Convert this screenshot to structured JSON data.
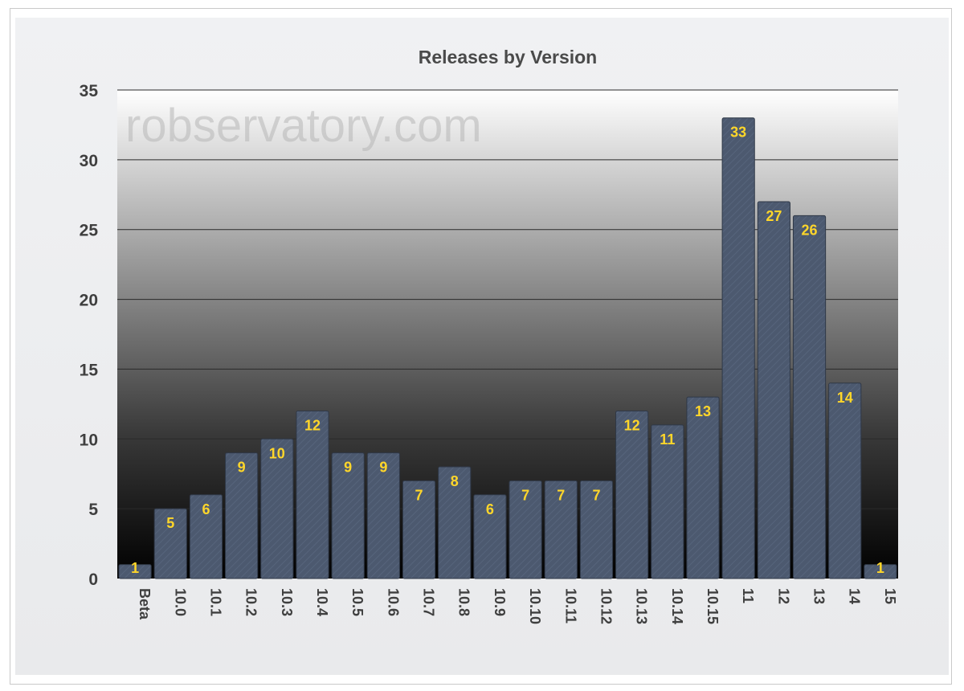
{
  "chart_data": {
    "type": "bar",
    "title": "Releases by Version",
    "watermark": "robservatory.com",
    "xlabel": "",
    "ylabel": "",
    "ylim": [
      0,
      35
    ],
    "yticks": [
      0,
      5,
      10,
      15,
      20,
      25,
      30,
      35
    ],
    "grid": true,
    "categories": [
      "Beta",
      "10.0",
      "10.1",
      "10.2",
      "10.3",
      "10.4",
      "10.5",
      "10.6",
      "10.7",
      "10.8",
      "10.9",
      "10.10",
      "10.11",
      "10.12",
      "10.13",
      "10.14",
      "10.15",
      "11",
      "12",
      "13",
      "14",
      "15"
    ],
    "values": [
      1,
      5,
      6,
      9,
      10,
      12,
      9,
      9,
      7,
      8,
      6,
      7,
      7,
      7,
      12,
      11,
      13,
      33,
      27,
      26,
      14,
      1
    ],
    "colors": {
      "bar": "#4c596f",
      "bar_edge": "#2f3847",
      "data_label": "#ffd62a",
      "plot_top": "#ffffff",
      "plot_bottom": "#000000",
      "text": "#3f3f3f"
    }
  }
}
